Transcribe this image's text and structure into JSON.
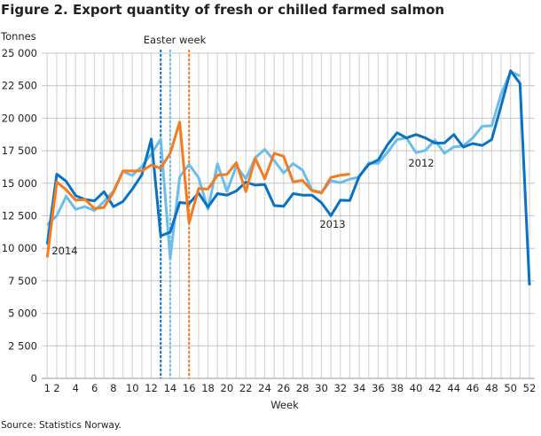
{
  "chart_data": {
    "type": "line",
    "title": "Figure 2. Export quantity of fresh or chilled farmed salmon",
    "ylabel": "Tonnes",
    "xlabel": "Week",
    "source": "Source: Statistics Norway.",
    "ylim": [
      0,
      25000
    ],
    "xlim": [
      1,
      52
    ],
    "yticks": [
      0,
      2500,
      5000,
      7500,
      10000,
      12500,
      15000,
      17500,
      20000,
      22500,
      25000
    ],
    "ytick_labels": [
      "0",
      "2 500",
      "5 000",
      "7 500",
      "10 000",
      "12 500",
      "15 000",
      "17 500",
      "20 000",
      "22 500",
      "25 000"
    ],
    "xticks": [
      1,
      2,
      4,
      6,
      8,
      10,
      12,
      14,
      16,
      18,
      20,
      22,
      24,
      26,
      28,
      30,
      32,
      34,
      36,
      38,
      40,
      42,
      44,
      46,
      48,
      50,
      52
    ],
    "xtick_labels": [
      "1",
      "2",
      "4",
      "6",
      "8",
      "10",
      "12",
      "14",
      "16",
      "18",
      "20",
      "22",
      "24",
      "26",
      "28",
      "30",
      "32",
      "34",
      "36",
      "38",
      "40",
      "42",
      "44",
      "46",
      "48",
      "50",
      "52"
    ],
    "grid": true,
    "legend": "none (direct labels)",
    "easter": {
      "label": "Easter week",
      "weeks": [
        {
          "week": 13,
          "color": "#0a72c4"
        },
        {
          "week": 14,
          "color": "#6cbdea"
        },
        {
          "week": 16,
          "color": "#f47b20"
        }
      ]
    },
    "series": [
      {
        "name": "2012",
        "color": "#6cbdea",
        "label_at_week": 41,
        "values": [
          11800,
          12500,
          14000,
          13000,
          13200,
          12900,
          13600,
          14400,
          15900,
          15600,
          16300,
          17250,
          18400,
          9200,
          15500,
          16450,
          15430,
          13000,
          16500,
          14360,
          16330,
          15340,
          16960,
          17600,
          16740,
          15790,
          16510,
          16010,
          14480,
          14300,
          15200,
          15040,
          15320,
          15480,
          16560,
          16520,
          17400,
          18360,
          18480,
          17350,
          17530,
          18320,
          17300,
          17800,
          17870,
          18480,
          19380,
          19420,
          21850,
          23580,
          23250
        ]
      },
      {
        "name": "2013",
        "color": "#0a72c4",
        "label_at_week": 31,
        "values": [
          10300,
          15700,
          15150,
          14050,
          13750,
          13650,
          14350,
          13200,
          13600,
          14550,
          15650,
          18400,
          10950,
          11250,
          13520,
          13450,
          14250,
          13170,
          14200,
          14090,
          14410,
          15090,
          14860,
          14900,
          13280,
          13230,
          14200,
          14090,
          14090,
          13500,
          12510,
          13700,
          13680,
          15550,
          16450,
          16790,
          17980,
          18880,
          18480,
          18750,
          18480,
          18090,
          18090,
          18750,
          17780,
          18050,
          17910,
          18360,
          20950,
          23650,
          22680,
          7160
        ]
      },
      {
        "name": "2014",
        "color": "#f47b20",
        "label_at_week": 1,
        "values": [
          9300,
          15100,
          14500,
          13700,
          13750,
          13050,
          13150,
          14300,
          15950,
          15950,
          15950,
          16400,
          16150,
          17300,
          19700,
          11950,
          14590,
          14550,
          15610,
          15680,
          16580,
          14360,
          16920,
          15340,
          17300,
          17080,
          15110,
          15220,
          14430,
          14250,
          15450,
          15610,
          15700
        ]
      }
    ]
  }
}
